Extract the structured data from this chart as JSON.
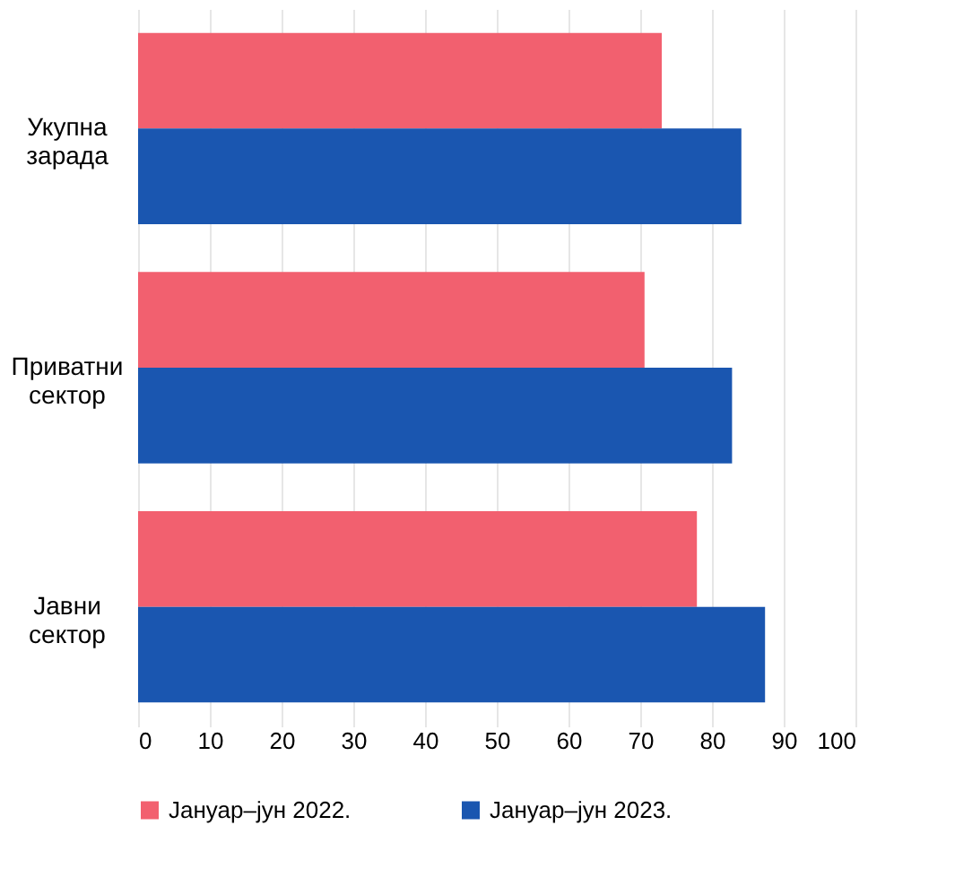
{
  "chart_data": {
    "type": "bar",
    "orientation": "horizontal",
    "categories": [
      "Укупна зарада",
      "Приватни сектор",
      "Јавни сектор"
    ],
    "series": [
      {
        "name": "Јануар–јун 2022.",
        "color": "#f2606f",
        "values": [
          73.0,
          70.6,
          77.9
        ]
      },
      {
        "name": "Јануар–јун 2023.",
        "color": "#1a56b0",
        "values": [
          84.1,
          82.8,
          87.4
        ]
      }
    ],
    "xlim": [
      0,
      100
    ],
    "xticks": [
      0,
      10,
      20,
      30,
      40,
      50,
      60,
      70,
      80,
      90,
      100
    ],
    "grid": "x",
    "legend": "bottom"
  }
}
